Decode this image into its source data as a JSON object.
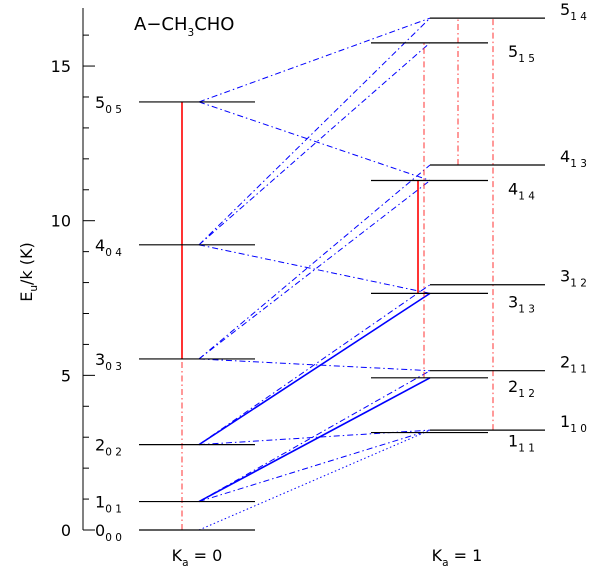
{
  "title": {
    "main": "A−CH",
    "sub": "3",
    "rest": "CHO"
  },
  "y_axis": {
    "label": "E",
    "label_sub": "u",
    "label_rest": "/k (K)",
    "min": 0,
    "max": 16.8,
    "ticks": [
      "0",
      "5",
      "10",
      "15"
    ]
  },
  "columns": [
    {
      "name": "K",
      "name_sub": "a",
      "value": " = 0"
    },
    {
      "name": "K",
      "name_sub": "a",
      "value": " = 1"
    }
  ],
  "colors": {
    "level": "#000000",
    "solid_transition": "#0000ff",
    "dashdot_transition": "#0000ff",
    "red_transition": "#ff0000",
    "red_dashdot": "#ff3333",
    "dotted_transition": "#0000ff"
  },
  "levels": [
    {
      "id": "000",
      "j": "0",
      "sub": "0 0",
      "energy": 0.0,
      "column": 0,
      "row": "lower"
    },
    {
      "id": "101",
      "j": "1",
      "sub": "0 1",
      "energy": 0.92,
      "column": 0,
      "row": "lower"
    },
    {
      "id": "202",
      "j": "2",
      "sub": "0 2",
      "energy": 2.76,
      "column": 0,
      "row": "lower"
    },
    {
      "id": "303",
      "j": "3",
      "sub": "0 3",
      "energy": 5.53,
      "column": 0,
      "row": "lower"
    },
    {
      "id": "404",
      "j": "4",
      "sub": "0 4",
      "energy": 9.22,
      "column": 0,
      "row": "lower"
    },
    {
      "id": "505",
      "j": "5",
      "sub": "0 5",
      "energy": 13.84,
      "column": 0,
      "row": "lower"
    },
    {
      "id": "111",
      "j": "1",
      "sub": "1 1",
      "energy": 3.15,
      "column": 1,
      "row": "lower"
    },
    {
      "id": "110",
      "j": "1",
      "sub": "1 0",
      "energy": 3.23,
      "column": 1,
      "row": "upper"
    },
    {
      "id": "212",
      "j": "2",
      "sub": "1 2",
      "energy": 4.92,
      "column": 1,
      "row": "lower"
    },
    {
      "id": "211",
      "j": "2",
      "sub": "1 1",
      "energy": 5.15,
      "column": 1,
      "row": "upper"
    },
    {
      "id": "313",
      "j": "3",
      "sub": "1 3",
      "energy": 7.65,
      "column": 1,
      "row": "lower"
    },
    {
      "id": "312",
      "j": "3",
      "sub": "1 2",
      "energy": 7.93,
      "column": 1,
      "row": "upper"
    },
    {
      "id": "414",
      "j": "4",
      "sub": "1 4",
      "energy": 11.3,
      "column": 1,
      "row": "lower"
    },
    {
      "id": "413",
      "j": "4",
      "sub": "1 3",
      "energy": 11.8,
      "column": 1,
      "row": "upper"
    },
    {
      "id": "515",
      "j": "5",
      "sub": "1 5",
      "energy": 15.75,
      "column": 1,
      "row": "lower"
    },
    {
      "id": "514",
      "j": "5",
      "sub": "1 4",
      "energy": 16.55,
      "column": 1,
      "row": "upper"
    }
  ],
  "transitions": [
    {
      "from": "000",
      "to": "110",
      "style": "dotted"
    },
    {
      "from": "101",
      "to": "212",
      "style": "solid"
    },
    {
      "from": "101",
      "to": "211",
      "style": "dashdot"
    },
    {
      "from": "101",
      "to": "110",
      "style": "dashdot"
    },
    {
      "from": "202",
      "to": "313",
      "style": "solid"
    },
    {
      "from": "202",
      "to": "312",
      "style": "dashdot"
    },
    {
      "from": "202",
      "to": "110",
      "style": "dashdot"
    },
    {
      "from": "303",
      "to": "414",
      "style": "dashdot"
    },
    {
      "from": "303",
      "to": "413",
      "style": "dashdot"
    },
    {
      "from": "303",
      "to": "211",
      "style": "dashdot"
    },
    {
      "from": "404",
      "to": "515",
      "style": "dashdot"
    },
    {
      "from": "404",
      "to": "514",
      "style": "dashdot"
    },
    {
      "from": "404",
      "to": "313",
      "style": "dashdot"
    },
    {
      "from": "505",
      "to": "514",
      "style": "dashdot"
    },
    {
      "from": "505",
      "to": "414",
      "style": "dashdot"
    },
    {
      "from": "000",
      "to": "303",
      "style": "red_dashdot"
    },
    {
      "from": "303",
      "to": "404",
      "style": "red"
    },
    {
      "from": "404",
      "to": "505",
      "style": "red"
    },
    {
      "from": "212",
      "to": "515",
      "style": "red_dashdot"
    },
    {
      "from": "313",
      "to": "414",
      "style": "red"
    },
    {
      "from": "110",
      "to": "514",
      "style": "red_dashdot"
    },
    {
      "from": "413",
      "to": "514",
      "style": "red_dashdot"
    }
  ]
}
